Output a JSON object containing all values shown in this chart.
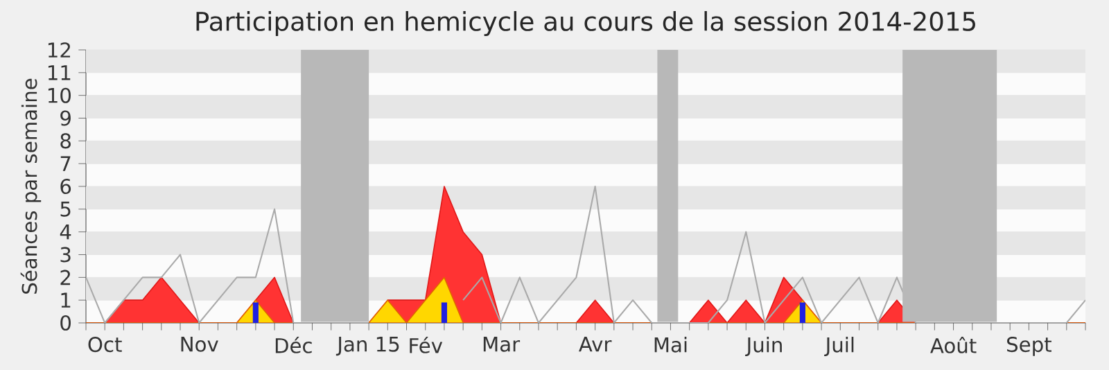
{
  "chart_data": {
    "type": "area",
    "title": "Participation en hemicycle au cours de la session 2014-2015",
    "ylabel": "Séances par semaine",
    "categories": [
      null,
      "Oct",
      null,
      null,
      null,
      null,
      "Nov",
      null,
      null,
      null,
      null,
      "Déc",
      null,
      null,
      null,
      "Jan 15",
      null,
      null,
      "Fév",
      null,
      null,
      null,
      "Mar",
      null,
      null,
      null,
      null,
      "Avr",
      null,
      null,
      null,
      "Mai",
      null,
      null,
      null,
      null,
      "Juin",
      null,
      null,
      null,
      "Juil",
      null,
      null,
      null,
      null,
      null,
      "Août",
      null,
      null,
      null,
      "Sept",
      null,
      null,
      null
    ],
    "series": [
      {
        "type": "line",
        "color": "#aaaaaa",
        "values": [
          2,
          0,
          1,
          2,
          2,
          3,
          0,
          1,
          2,
          2,
          5,
          0,
          0,
          0,
          0,
          0,
          null,
          null,
          null,
          null,
          1,
          2,
          0,
          2,
          0,
          1,
          2,
          6,
          0,
          1,
          0,
          0,
          0,
          0,
          1,
          4,
          0,
          1,
          2,
          0,
          1,
          2,
          0,
          2,
          0,
          0,
          0,
          0,
          0,
          0,
          0,
          0,
          0,
          1
        ]
      },
      {
        "color": "#ff3333",
        "values": [
          0,
          0,
          1,
          1,
          2,
          1,
          0,
          0,
          0,
          1,
          2,
          0,
          0,
          0,
          0,
          0,
          1,
          1,
          1,
          6,
          4,
          3,
          0,
          0,
          0,
          0,
          0,
          1,
          0,
          0,
          0,
          0,
          0,
          1,
          0,
          1,
          0,
          2,
          1,
          0,
          0,
          0,
          0,
          1,
          0,
          0,
          0,
          0,
          0,
          0,
          0,
          0,
          0,
          0
        ]
      },
      {
        "color": "#ffd700",
        "values": [
          0,
          0,
          0,
          0,
          0,
          0,
          0,
          0,
          0,
          1,
          0,
          0,
          0,
          0,
          0,
          0,
          1,
          0,
          1,
          2,
          0,
          0,
          0,
          0,
          0,
          0,
          0,
          0,
          0,
          0,
          0,
          0,
          0,
          0,
          0,
          0,
          0,
          0,
          1,
          0,
          0,
          0,
          0,
          0,
          0,
          0,
          0,
          0,
          0,
          0,
          0,
          0,
          0,
          0
        ]
      },
      {
        "type": "bar",
        "color": "#2020e0",
        "values": [
          null,
          null,
          null,
          null,
          null,
          null,
          null,
          null,
          null,
          0.9,
          null,
          null,
          null,
          null,
          null,
          null,
          null,
          null,
          null,
          0.9,
          null,
          null,
          null,
          null,
          null,
          null,
          null,
          null,
          null,
          null,
          null,
          null,
          null,
          null,
          null,
          null,
          null,
          null,
          0.9,
          null,
          null,
          null,
          null,
          null,
          null,
          null,
          null,
          null,
          null,
          null,
          null,
          null,
          null,
          null
        ]
      }
    ],
    "ylim": [
      0,
      12
    ],
    "yticks": [
      0,
      1,
      2,
      3,
      4,
      5,
      6,
      7,
      8,
      9,
      10,
      11,
      12
    ],
    "grid": "y"
  }
}
